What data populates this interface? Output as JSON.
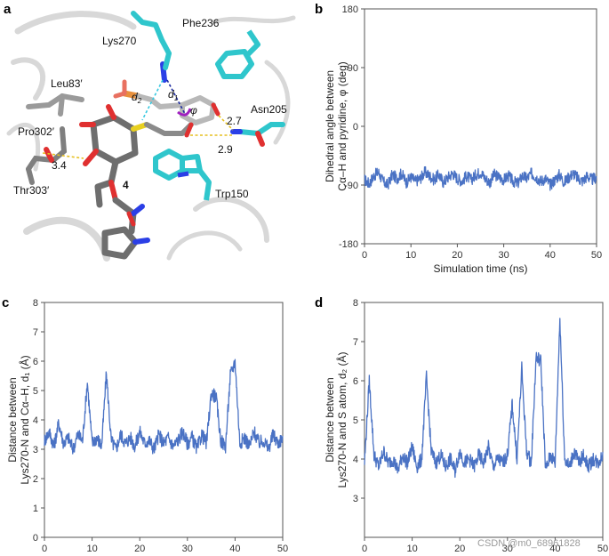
{
  "panel_a": {
    "letter": "a",
    "labels": {
      "lys270": "Lys270",
      "phe236": "Phe236",
      "leu83": "Leu83′",
      "pro302": "Pro302′",
      "thr303": "Thr303′",
      "asn205": "Asn205",
      "trp150": "Trp150",
      "compound": "4",
      "d1": "d",
      "d1_sub": "1",
      "d2": "d",
      "d2_sub": "2",
      "phi": "φ",
      "dist_27": "2.7",
      "dist_29": "2.9",
      "dist_34": "3.4"
    }
  },
  "colors": {
    "line": "#4a72c4",
    "axis": "#555555",
    "carbon_teal": "#2fc6cc",
    "carbon_grey": "#6e6e6e"
  },
  "watermark": "CSDN @m0_68961828",
  "chart_data": [
    {
      "id": "b",
      "letter": "b",
      "type": "line",
      "xlabel": "Simulation time (ns)",
      "ylabel_lines": [
        "Dihedral angle between",
        "Cα–H and pyridine, φ (deg)"
      ],
      "xlim": [
        0,
        50
      ],
      "ylim": [
        -180,
        180
      ],
      "xticks": [
        0,
        10,
        20,
        30,
        40,
        50
      ],
      "yticks": [
        -180,
        -90,
        0,
        90,
        180
      ],
      "grid": false,
      "series": [
        {
          "x": [
            0,
            1,
            2,
            3,
            4,
            5,
            6,
            7,
            8,
            9,
            10,
            11,
            12,
            13,
            14,
            15,
            16,
            17,
            18,
            19,
            20,
            21,
            22,
            23,
            24,
            25,
            26,
            27,
            28,
            29,
            30,
            31,
            32,
            33,
            34,
            35,
            36,
            37,
            38,
            39,
            40,
            41,
            42,
            43,
            44,
            45,
            46,
            47,
            48,
            49,
            50
          ],
          "values": [
            -82,
            -88,
            -76,
            -70,
            -85,
            -90,
            -74,
            -80,
            -72,
            -86,
            -78,
            -84,
            -80,
            -70,
            -76,
            -82,
            -74,
            -86,
            -78,
            -72,
            -80,
            -84,
            -76,
            -82,
            -74,
            -70,
            -80,
            -86,
            -74,
            -78,
            -82,
            -76,
            -84,
            -88,
            -76,
            -80,
            -72,
            -78,
            -84,
            -80,
            -90,
            -82,
            -74,
            -86,
            -78,
            -72,
            -80,
            -84,
            -76,
            -82,
            -78
          ]
        }
      ]
    },
    {
      "id": "c",
      "letter": "c",
      "type": "line",
      "xlabel": "Simulation time (ns)",
      "ylabel_lines": [
        "Distance between",
        "Lys270-N and Cα–H, d₁ (Å)"
      ],
      "xlim": [
        0,
        50
      ],
      "ylim": [
        0,
        8
      ],
      "xticks": [
        0,
        10,
        20,
        30,
        40,
        50
      ],
      "yticks": [
        0,
        1,
        2,
        3,
        4,
        5,
        6,
        7,
        8
      ],
      "grid": false,
      "series": [
        {
          "x": [
            0,
            1,
            2,
            3,
            4,
            5,
            6,
            7,
            8,
            9,
            10,
            11,
            12,
            13,
            14,
            15,
            16,
            17,
            18,
            19,
            20,
            21,
            22,
            23,
            24,
            25,
            26,
            27,
            28,
            29,
            30,
            31,
            32,
            33,
            34,
            35,
            36,
            37,
            38,
            39,
            40,
            41,
            42,
            43,
            44,
            45,
            46,
            47,
            48,
            49,
            50
          ],
          "values": [
            3.3,
            3.6,
            3.1,
            3.9,
            3.2,
            3.4,
            3.0,
            3.5,
            3.3,
            5.3,
            3.2,
            3.4,
            3.1,
            5.6,
            3.3,
            3.0,
            3.5,
            3.2,
            3.4,
            3.1,
            3.6,
            3.2,
            3.3,
            3.0,
            3.5,
            3.2,
            3.4,
            3.1,
            3.3,
            3.6,
            3.2,
            3.4,
            3.0,
            3.5,
            3.2,
            4.9,
            4.8,
            3.3,
            3.1,
            5.5,
            6.0,
            3.2,
            3.4,
            3.1,
            3.6,
            3.2,
            3.3,
            3.0,
            3.5,
            3.2,
            3.4
          ]
        }
      ]
    },
    {
      "id": "d",
      "letter": "d",
      "type": "line",
      "xlabel": "Simulation time (ns)",
      "ylabel_lines": [
        "Distance between",
        "Lys270-N and S atom, d₂ (Å)"
      ],
      "xlim": [
        0,
        50
      ],
      "ylim": [
        2,
        8
      ],
      "xticks": [
        0,
        10,
        20,
        30,
        40,
        50
      ],
      "yticks": [
        3,
        4,
        5,
        6,
        7,
        8
      ],
      "grid": false,
      "series": [
        {
          "x": [
            0,
            1,
            2,
            3,
            4,
            5,
            6,
            7,
            8,
            9,
            10,
            11,
            12,
            13,
            14,
            15,
            16,
            17,
            18,
            19,
            20,
            21,
            22,
            23,
            24,
            25,
            26,
            27,
            28,
            29,
            30,
            31,
            32,
            33,
            34,
            35,
            36,
            37,
            38,
            39,
            40,
            41,
            42,
            43,
            44,
            45,
            46,
            47,
            48,
            49,
            50
          ],
          "values": [
            3.9,
            6.0,
            4.1,
            3.8,
            4.2,
            3.9,
            4.0,
            3.7,
            4.1,
            3.9,
            4.3,
            3.8,
            4.0,
            6.1,
            4.2,
            3.9,
            4.1,
            3.8,
            4.0,
            3.7,
            4.2,
            3.9,
            4.0,
            3.8,
            4.1,
            3.9,
            4.3,
            3.8,
            4.0,
            3.9,
            4.1,
            5.4,
            4.0,
            6.3,
            4.2,
            3.9,
            6.6,
            6.5,
            3.7,
            4.1,
            3.9,
            7.6,
            4.0,
            3.8,
            4.2,
            3.9,
            4.1,
            3.8,
            4.0,
            3.9,
            4.1
          ]
        }
      ]
    }
  ]
}
